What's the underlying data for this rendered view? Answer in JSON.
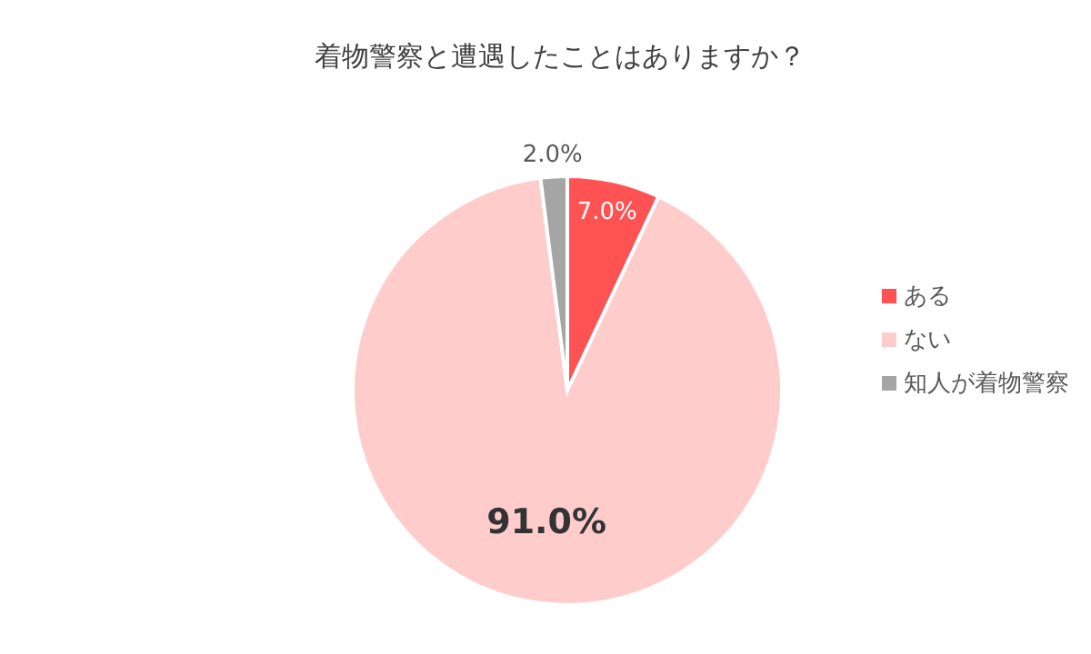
{
  "chart_data": {
    "type": "pie",
    "title": "着物警察と遭遇したことはありますか？",
    "categories": [
      "ある",
      "ない",
      "知人が着物警察"
    ],
    "values": [
      7.0,
      91.0,
      2.0
    ],
    "colors": [
      "#ff5252",
      "#ffcccc",
      "#a5a5a5"
    ],
    "value_labels": [
      "7.0%",
      "91.0%",
      "2.0%"
    ],
    "legend": "right"
  }
}
